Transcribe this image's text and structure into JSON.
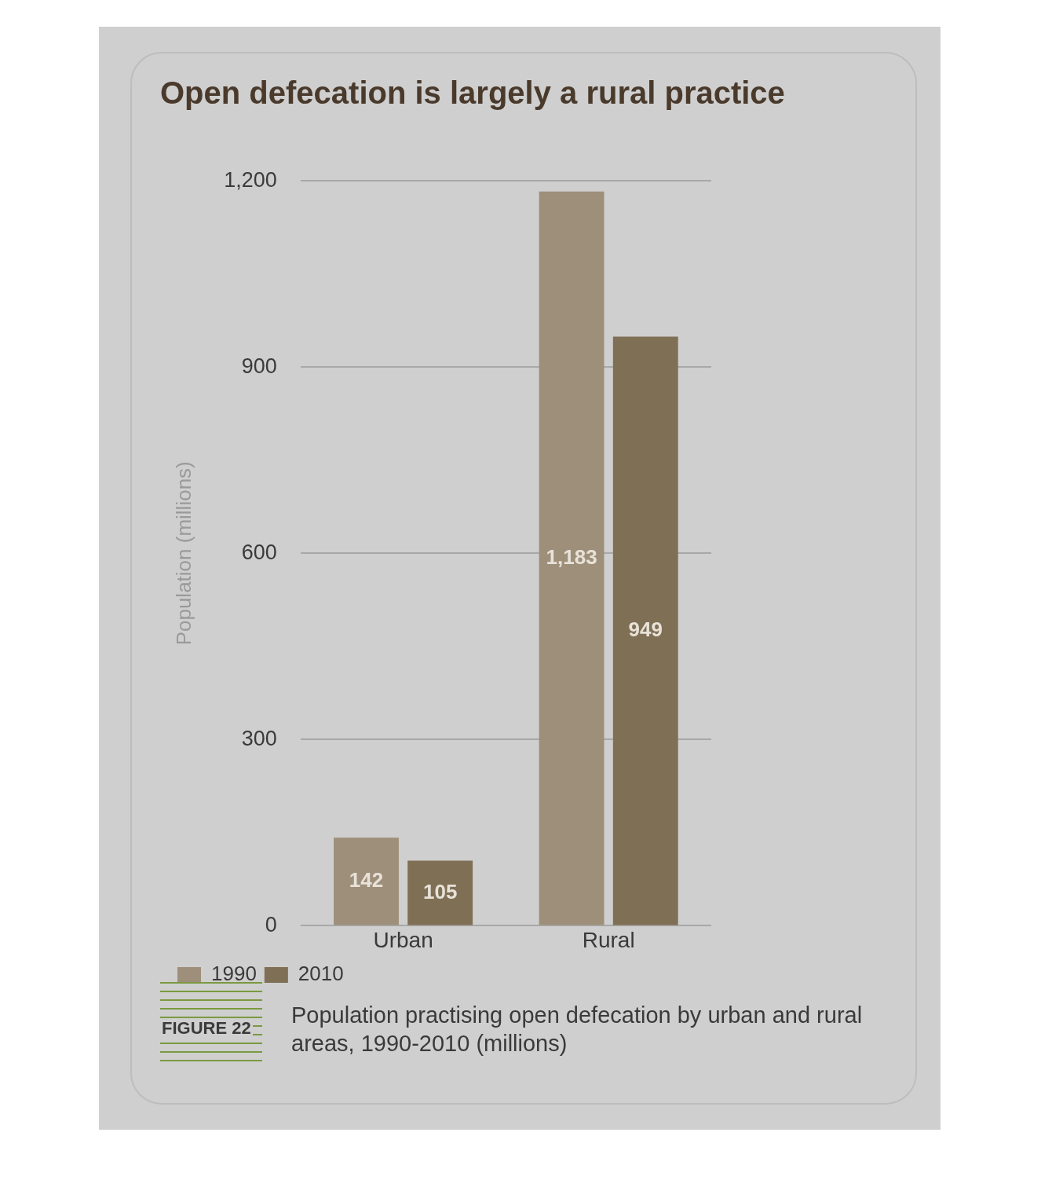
{
  "chart_data": {
    "type": "bar",
    "title": "Open defecation is largely a rural practice",
    "ylabel": "Population (millions)",
    "categories": [
      "Urban",
      "Rural"
    ],
    "series": [
      {
        "name": "1990",
        "color": "#9e8f7a",
        "values": [
          142,
          1183
        ],
        "value_labels": [
          "142",
          "1,183"
        ]
      },
      {
        "name": "2010",
        "color": "#7f6f55",
        "values": [
          105,
          949
        ],
        "value_labels": [
          "105",
          "949"
        ]
      }
    ],
    "ylim": [
      0,
      1200
    ],
    "yticks": [
      0,
      {
        "value": 300,
        "label": "300"
      },
      {
        "value": 600,
        "label": "600"
      },
      {
        "value": 900,
        "label": "900"
      },
      {
        "value": 1200,
        "label": "1,200"
      }
    ],
    "grid": "y",
    "legend": "bottom left",
    "annotations": [
      "FIGURE 22",
      "Population practising open defecation by urban and rural areas, 1990-2010 (millions)"
    ]
  }
}
